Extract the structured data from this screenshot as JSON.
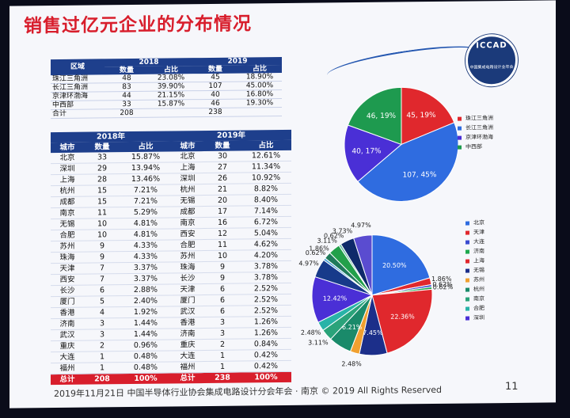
{
  "title": "销售过亿元企业的分布情况",
  "logo_text": "ICCAD",
  "logo_subtext": "中国集成电路设计业年会",
  "table1": {
    "header": {
      "area": "区域",
      "y2018": "2018",
      "y2019": "2019",
      "count": "数量",
      "share": "占比"
    },
    "rows": [
      {
        "area": "珠江三角洲",
        "c18": "48",
        "p18": "23.08%",
        "c19": "45",
        "p19": "18.90%"
      },
      {
        "area": "长江三角洲",
        "c18": "83",
        "p18": "39.90%",
        "c19": "107",
        "p19": "45.00%"
      },
      {
        "area": "京津环渤海",
        "c18": "44",
        "p18": "21.15%",
        "c19": "40",
        "p19": "16.80%"
      },
      {
        "area": "中西部",
        "c18": "33",
        "p18": "15.87%",
        "c19": "46",
        "p19": "19.30%"
      },
      {
        "area": "合计",
        "c18": "208",
        "p18": "",
        "c19": "238",
        "p19": ""
      }
    ]
  },
  "table2": {
    "header": {
      "y2018": "2018年",
      "y2019": "2019年",
      "city": "城市",
      "count": "数量",
      "share": "占比"
    },
    "rows": [
      {
        "a": "北京",
        "b": "33",
        "c": "15.87%",
        "d": "北京",
        "e": "30",
        "f": "12.61%"
      },
      {
        "a": "深圳",
        "b": "29",
        "c": "13.94%",
        "d": "上海",
        "e": "27",
        "f": "11.34%"
      },
      {
        "a": "上海",
        "b": "28",
        "c": "13.46%",
        "d": "深圳",
        "e": "26",
        "f": "10.92%"
      },
      {
        "a": "杭州",
        "b": "15",
        "c": "7.21%",
        "d": "杭州",
        "e": "21",
        "f": "8.82%"
      },
      {
        "a": "成都",
        "b": "15",
        "c": "7.21%",
        "d": "无锡",
        "e": "20",
        "f": "8.40%"
      },
      {
        "a": "南京",
        "b": "11",
        "c": "5.29%",
        "d": "成都",
        "e": "17",
        "f": "7.14%"
      },
      {
        "a": "无锡",
        "b": "10",
        "c": "4.81%",
        "d": "南京",
        "e": "16",
        "f": "6.72%"
      },
      {
        "a": "合肥",
        "b": "10",
        "c": "4.81%",
        "d": "西安",
        "e": "12",
        "f": "5.04%"
      },
      {
        "a": "苏州",
        "b": "9",
        "c": "4.33%",
        "d": "合肥",
        "e": "11",
        "f": "4.62%"
      },
      {
        "a": "珠海",
        "b": "9",
        "c": "4.33%",
        "d": "苏州",
        "e": "10",
        "f": "4.20%"
      },
      {
        "a": "天津",
        "b": "7",
        "c": "3.37%",
        "d": "珠海",
        "e": "9",
        "f": "3.78%"
      },
      {
        "a": "西安",
        "b": "7",
        "c": "3.37%",
        "d": "长沙",
        "e": "9",
        "f": "3.78%"
      },
      {
        "a": "长沙",
        "b": "6",
        "c": "2.88%",
        "d": "天津",
        "e": "6",
        "f": "2.52%"
      },
      {
        "a": "厦门",
        "b": "5",
        "c": "2.40%",
        "d": "厦门",
        "e": "6",
        "f": "2.52%"
      },
      {
        "a": "香港",
        "b": "4",
        "c": "1.92%",
        "d": "武汉",
        "e": "6",
        "f": "2.52%"
      },
      {
        "a": "济南",
        "b": "3",
        "c": "1.44%",
        "d": "香港",
        "e": "3",
        "f": "1.26%"
      },
      {
        "a": "武汉",
        "b": "3",
        "c": "1.44%",
        "d": "济南",
        "e": "3",
        "f": "1.26%"
      },
      {
        "a": "重庆",
        "b": "2",
        "c": "0.96%",
        "d": "重庆",
        "e": "2",
        "f": "0.84%"
      },
      {
        "a": "大连",
        "b": "1",
        "c": "0.48%",
        "d": "大连",
        "e": "1",
        "f": "0.42%"
      },
      {
        "a": "福州",
        "b": "1",
        "c": "0.48%",
        "d": "福州",
        "e": "1",
        "f": "0.42%"
      }
    ],
    "total": {
      "a": "总计",
      "b": "208",
      "c": "100%",
      "d": "总计",
      "e": "238",
      "f": "100%"
    }
  },
  "footer": "2019年11月21日  中国半导体行业协会集成电路设计分会年会 · 南京 © 2019 All Rights Reserved",
  "page_number": "11",
  "chart_data": [
    {
      "type": "pie",
      "slices": [
        {
          "name": "珠江三角洲",
          "value": 45,
          "label": "45, 19%",
          "color": "#e0282d"
        },
        {
          "name": "长江三角洲",
          "value": 107,
          "label": "107, 45%",
          "color": "#2f6ce0"
        },
        {
          "name": "京津环渤海",
          "value": 40,
          "label": "40, 17%",
          "color": "#4a2fd6"
        },
        {
          "name": "中西部",
          "value": 46,
          "label": "46, 19%",
          "color": "#1e9a4f"
        }
      ]
    },
    {
      "type": "pie",
      "slices": [
        {
          "name": "北京",
          "value": 20.5,
          "label": "20.50%",
          "color": "#2f6ce0"
        },
        {
          "name": "天津",
          "value": 1.86,
          "label": "1.86%",
          "color": "#e0282d"
        },
        {
          "name": "大连",
          "value": 0.62,
          "label": "0.62%",
          "color": "#3a4bd0"
        },
        {
          "name": "济南",
          "value": 0.62,
          "label": "0.62%",
          "color": "#1ea84e"
        },
        {
          "name": "上海",
          "value": 22.36,
          "label": "22.36%",
          "color": "#e0282d"
        },
        {
          "name": "无锡",
          "value": 7.45,
          "label": "7.45%",
          "color": "#1c2f8a"
        },
        {
          "name": "苏州",
          "value": 2.48,
          "label": "2.48%",
          "color": "#f0a030"
        },
        {
          "name": "杭州",
          "value": 6.21,
          "label": "6.21%",
          "color": "#1a8a6a"
        },
        {
          "name": "南京",
          "value": 3.11,
          "label": "3.11%",
          "color": "#2aa37a"
        },
        {
          "name": "合肥",
          "value": 2.48,
          "label": "2.48%",
          "color": "#29b3a8"
        },
        {
          "name": "深圳",
          "value": 12.42,
          "label": "12.42%",
          "color": "#4a2fd6"
        },
        {
          "name": "",
          "value": 4.97,
          "label": "4.97%",
          "color": "#173a8a"
        },
        {
          "name": "",
          "value": 0.62,
          "label": "0.62%",
          "color": "#4aa0d8"
        },
        {
          "name": "",
          "value": 1.86,
          "label": "1.86%",
          "color": "#1f7a5a"
        },
        {
          "name": "",
          "value": 3.11,
          "label": "3.11%",
          "color": "#22a04a"
        },
        {
          "name": "",
          "value": 0.62,
          "label": "0.62%",
          "color": "#6cc0a8"
        },
        {
          "name": "",
          "value": 3.73,
          "label": "3.73%",
          "color": "#0e2a6a"
        },
        {
          "name": "",
          "value": 4.97,
          "label": "4.97%",
          "color": "#5a4cd0"
        }
      ]
    }
  ]
}
